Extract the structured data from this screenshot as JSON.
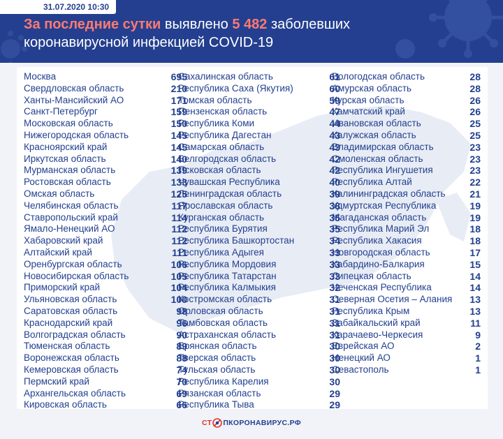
{
  "header": {
    "date": "31.07.2020 10:30",
    "title_prefix": "За последние сутки",
    "title_middle": " выявлено ",
    "title_count": "5 482",
    "title_suffix": " заболевших",
    "title_line2": "коронавирусной инфекцией COVID-19"
  },
  "columns": [
    [
      {
        "region": "Москва",
        "count": "695"
      },
      {
        "region": "Свердловская область",
        "count": "210"
      },
      {
        "region": "Ханты-Мансийский АО",
        "count": "171"
      },
      {
        "region": "Санкт-Петербург",
        "count": "159"
      },
      {
        "region": "Московская область",
        "count": "150"
      },
      {
        "region": "Нижегородская область",
        "count": "145"
      },
      {
        "region": "Красноярский край",
        "count": "145"
      },
      {
        "region": "Иркутская область",
        "count": "140"
      },
      {
        "region": "Мурманская область",
        "count": "139"
      },
      {
        "region": "Ростовская область",
        "count": "133"
      },
      {
        "region": "Омская область",
        "count": "125"
      },
      {
        "region": "Челябинская область",
        "count": "117"
      },
      {
        "region": "Ставропольский край",
        "count": "114"
      },
      {
        "region": "Ямало-Ненецкий АО",
        "count": "112"
      },
      {
        "region": "Хабаровский край",
        "count": "112"
      },
      {
        "region": "Алтайский край",
        "count": "111"
      },
      {
        "region": "Оренбургская область",
        "count": "106"
      },
      {
        "region": "Новосибирская область",
        "count": "105"
      },
      {
        "region": "Приморский край",
        "count": "104"
      },
      {
        "region": "Ульяновская область",
        "count": "100"
      },
      {
        "region": "Саратовская область",
        "count": "98"
      },
      {
        "region": "Краснодарский край",
        "count": "96"
      },
      {
        "region": "Волгоградская область",
        "count": "90"
      },
      {
        "region": "Тюменская область",
        "count": "89"
      },
      {
        "region": "Воронежская область",
        "count": "88"
      },
      {
        "region": "Кемеровская область",
        "count": "74"
      },
      {
        "region": "Пермский край",
        "count": "70"
      },
      {
        "region": "Архангельская область",
        "count": "69"
      },
      {
        "region": "Кировская область",
        "count": "66"
      }
    ],
    [
      {
        "region": "Сахалинская область",
        "count": "61"
      },
      {
        "region": "Республика Саха (Якутия)",
        "count": "60"
      },
      {
        "region": "Томская область",
        "count": "59"
      },
      {
        "region": "Пензенская область",
        "count": "47"
      },
      {
        "region": "Республика Коми",
        "count": "44"
      },
      {
        "region": "Республика Дагестан",
        "count": "43"
      },
      {
        "region": "Самарская область",
        "count": "43"
      },
      {
        "region": "Белгородская область",
        "count": "42"
      },
      {
        "region": "Псковская область",
        "count": "42"
      },
      {
        "region": "Чувашская Республика",
        "count": "40"
      },
      {
        "region": "Ленинградская область",
        "count": "39"
      },
      {
        "region": "Ярославская область",
        "count": "38"
      },
      {
        "region": "Курганская область",
        "count": "35"
      },
      {
        "region": "Республика Бурятия",
        "count": "35"
      },
      {
        "region": "Республика Башкортостан",
        "count": "34"
      },
      {
        "region": "Республика Адыгея",
        "count": "33"
      },
      {
        "region": "Республика Мордовия",
        "count": "33"
      },
      {
        "region": "Республика Татарстан",
        "count": "33"
      },
      {
        "region": "Республика Калмыкия",
        "count": "32"
      },
      {
        "region": "Костромская область",
        "count": "31"
      },
      {
        "region": "Орловская область",
        "count": "31"
      },
      {
        "region": "Тамбовская область",
        "count": "31"
      },
      {
        "region": "Астраханская область",
        "count": "31"
      },
      {
        "region": "Брянская область",
        "count": "30"
      },
      {
        "region": "Тверская область",
        "count": "30"
      },
      {
        "region": "Тульская область",
        "count": "30"
      },
      {
        "region": "Республика Карелия",
        "count": "30"
      },
      {
        "region": "Рязанская область",
        "count": "29"
      },
      {
        "region": "Республика Тыва",
        "count": "29"
      }
    ],
    [
      {
        "region": "Вологодская область",
        "count": "28"
      },
      {
        "region": "Амурская область",
        "count": "28"
      },
      {
        "region": "Курская область",
        "count": "26"
      },
      {
        "region": "Камчатский край",
        "count": "26"
      },
      {
        "region": "Ивановская область",
        "count": "25"
      },
      {
        "region": "Калужская область",
        "count": "25"
      },
      {
        "region": "Владимирская область",
        "count": "23"
      },
      {
        "region": "Смоленская область",
        "count": "23"
      },
      {
        "region": "Республика Ингушетия",
        "count": "23"
      },
      {
        "region": "Республика Алтай",
        "count": "22"
      },
      {
        "region": "Калининградская область",
        "count": "21"
      },
      {
        "region": "Удмуртская Республика",
        "count": "19"
      },
      {
        "region": "Магаданская область",
        "count": "19"
      },
      {
        "region": "Республика Марий Эл",
        "count": "18"
      },
      {
        "region": "Республика Хакасия",
        "count": "18"
      },
      {
        "region": "Новгородская область",
        "count": "17"
      },
      {
        "region": "Кабардино-Балкария",
        "count": "15"
      },
      {
        "region": "Липецкая область",
        "count": "14"
      },
      {
        "region": "Чеченская Республика",
        "count": "14"
      },
      {
        "region": "Северная Осетия – Алания",
        "count": "13"
      },
      {
        "region": "Республика Крым",
        "count": "13"
      },
      {
        "region": "Забайкальский край",
        "count": "11"
      },
      {
        "region": "Карачаево-Черкесия",
        "count": "9"
      },
      {
        "region": "Еврейская АО",
        "count": "2"
      },
      {
        "region": "Ненецкий АО",
        "count": "1"
      },
      {
        "region": "Севастополь",
        "count": "1"
      }
    ]
  ],
  "footer": {
    "logo_left": "СТ",
    "logo_right": "ПКОРОНАВИРУС.РФ"
  },
  "colors": {
    "header_bg": "#243f8f",
    "accent": "#ff7a70",
    "text": "#22408f",
    "logo_red": "#e0312b"
  }
}
